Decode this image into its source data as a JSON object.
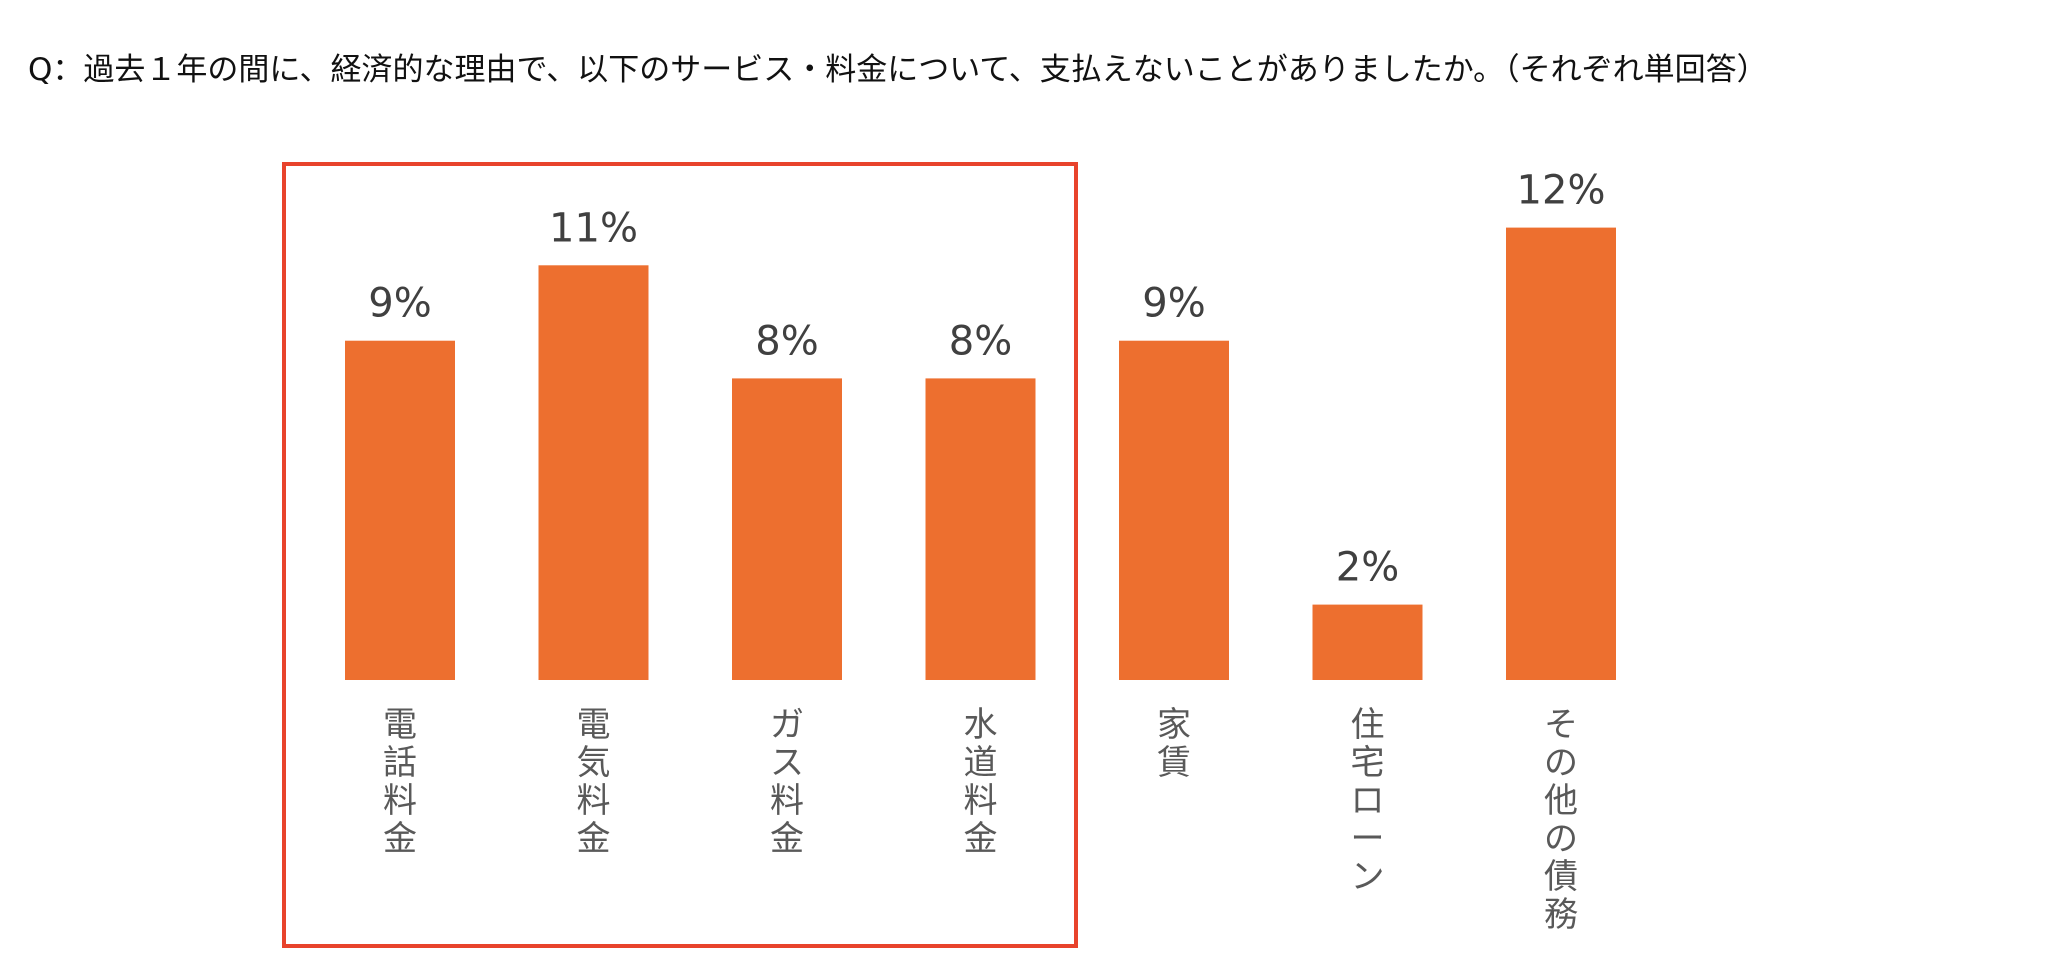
{
  "question": "Q：過去１年の間に、経済的な理由で、以下のサービス・料金について、支払えないことがありましたか。（それぞれ単回答）",
  "colors": {
    "bar": "#ED6F2F",
    "highlight_box": "#E8432C",
    "value_text": "#404040",
    "category_text": "#595959"
  },
  "chart_data": {
    "type": "bar",
    "title": "",
    "xlabel": "",
    "ylabel": "",
    "unit": "%",
    "categories": [
      "電話料金",
      "電気料金",
      "ガス料金",
      "水道料金",
      "家賃",
      "住宅ローン",
      "その他の債務"
    ],
    "values": [
      9,
      11,
      8,
      8,
      9,
      2,
      12
    ],
    "data_labels": [
      "9%",
      "11%",
      "8%",
      "8%",
      "9%",
      "2%",
      "12%"
    ],
    "ylim": [
      0,
      12
    ],
    "grid": false,
    "legend": "none",
    "highlighted_categories": [
      "電話料金",
      "電気料金",
      "ガス料金",
      "水道料金"
    ]
  }
}
